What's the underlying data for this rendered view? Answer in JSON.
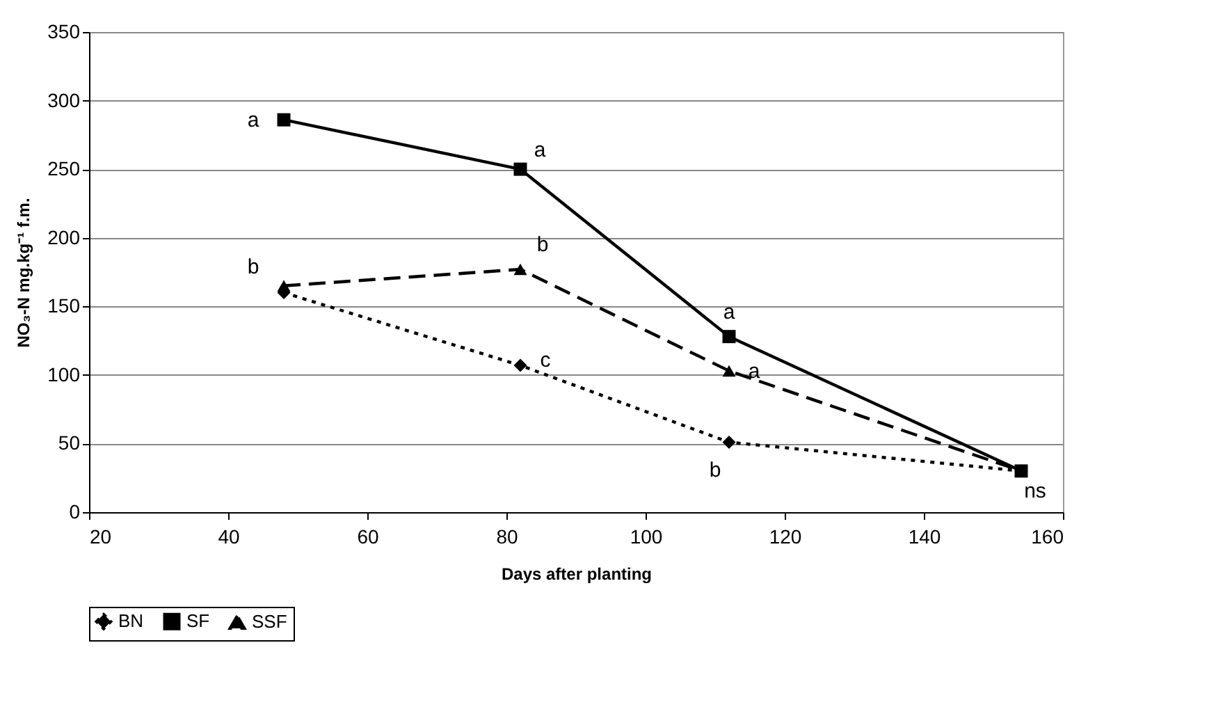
{
  "chart_data": {
    "type": "line",
    "xlabel": "Days after planting",
    "ylabel": "NO₃-N mg.kg⁻¹ f.m.",
    "x": [
      48,
      82,
      112,
      154
    ],
    "series": [
      {
        "name": "BN",
        "color": "#000000",
        "values": [
          160,
          107,
          51,
          30
        ],
        "marker": "diamond",
        "line_style": "dotted"
      },
      {
        "name": "SF",
        "color": "#000000",
        "values": [
          286,
          250,
          128,
          30
        ],
        "marker": "square",
        "line_style": "solid"
      },
      {
        "name": "SSF",
        "color": "#000000",
        "values": [
          165,
          177,
          103,
          30
        ],
        "marker": "triangle",
        "line_style": "dashed"
      }
    ],
    "xlim": [
      20,
      160
    ],
    "xticks": [
      20,
      40,
      60,
      80,
      100,
      120,
      140,
      160
    ],
    "ylim": [
      0,
      350
    ],
    "yticks": [
      0,
      50,
      100,
      150,
      200,
      250,
      300,
      350
    ],
    "grid": "y",
    "legend": "bottom",
    "annotations": [
      {
        "text": "a",
        "x": 48,
        "y": 286
      },
      {
        "text": "a",
        "x": 82,
        "y": 250
      },
      {
        "text": "b",
        "x": 48,
        "y": 165
      },
      {
        "text": "b",
        "x": 82,
        "y": 177
      },
      {
        "text": "c",
        "x": 82,
        "y": 107
      },
      {
        "text": "a",
        "x": 112,
        "y": 128
      },
      {
        "text": "a",
        "x": 112,
        "y": 103
      },
      {
        "text": "b",
        "x": 112,
        "y": 51
      },
      {
        "text": "ns",
        "x": 154,
        "y": 30
      }
    ]
  }
}
